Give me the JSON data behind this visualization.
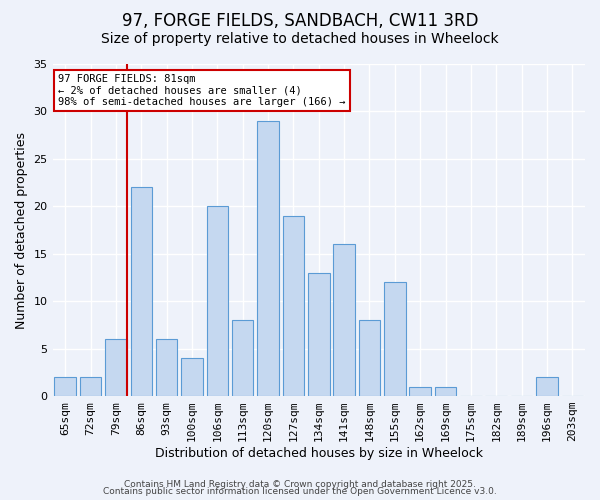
{
  "title": "97, FORGE FIELDS, SANDBACH, CW11 3RD",
  "subtitle": "Size of property relative to detached houses in Wheelock",
  "xlabel": "Distribution of detached houses by size in Wheelock",
  "ylabel": "Number of detached properties",
  "bin_labels": [
    "65sqm",
    "72sqm",
    "79sqm",
    "86sqm",
    "93sqm",
    "100sqm",
    "106sqm",
    "113sqm",
    "120sqm",
    "127sqm",
    "134sqm",
    "141sqm",
    "148sqm",
    "155sqm",
    "162sqm",
    "169sqm",
    "175sqm",
    "182sqm",
    "189sqm",
    "196sqm",
    "203sqm"
  ],
  "bar_values": [
    2,
    2,
    6,
    22,
    6,
    4,
    20,
    8,
    29,
    19,
    13,
    16,
    8,
    12,
    1,
    1,
    0,
    0,
    0,
    2,
    0
  ],
  "bar_color": "#c5d8f0",
  "bar_edge_color": "#5b9bd5",
  "vline_x_index": 2,
  "vline_color": "#cc0000",
  "ylim": [
    0,
    35
  ],
  "yticks": [
    0,
    5,
    10,
    15,
    20,
    25,
    30,
    35
  ],
  "annotation_title": "97 FORGE FIELDS: 81sqm",
  "annotation_line1": "← 2% of detached houses are smaller (4)",
  "annotation_line2": "98% of semi-detached houses are larger (166) →",
  "annotation_box_color": "#ffffff",
  "annotation_box_edge": "#cc0000",
  "footer1": "Contains HM Land Registry data © Crown copyright and database right 2025.",
  "footer2": "Contains public sector information licensed under the Open Government Licence v3.0.",
  "background_color": "#eef2fa",
  "grid_color": "#ffffff",
  "title_fontsize": 12,
  "subtitle_fontsize": 10,
  "axis_label_fontsize": 9,
  "tick_fontsize": 8,
  "footer_fontsize": 6.5
}
